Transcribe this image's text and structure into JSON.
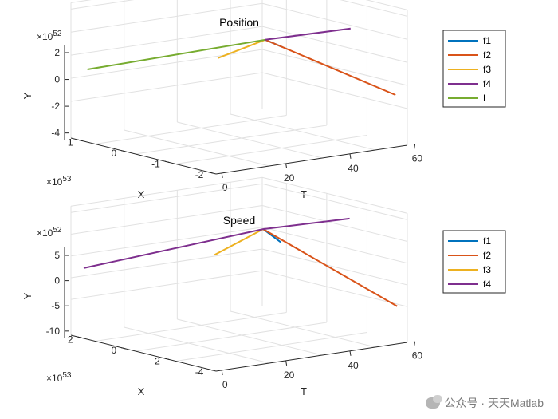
{
  "chart_data": [
    {
      "type": "line",
      "title": "Position",
      "xlabel": "X",
      "ylabel": "T",
      "zlabel": "Y",
      "x_exponent": "×10",
      "x_exponent_power": "53",
      "z_exponent": "×10",
      "z_exponent_power": "52",
      "xticks": [
        "1",
        "0",
        "-1",
        "-2"
      ],
      "yticks": [
        "0",
        "20",
        "40",
        "60"
      ],
      "zticks": [
        "2",
        "0",
        "-2",
        "-4"
      ],
      "legend_position": "top-right",
      "series": [
        {
          "name": "f1",
          "color": "#0072BD",
          "points": [
            [
              -0.09,
              40,
              0.4
            ],
            [
              -0.1,
              45,
              -0.4
            ]
          ]
        },
        {
          "name": "f2",
          "color": "#D95319",
          "points": [
            [
              -0.09,
              40,
              0.4
            ],
            [
              -1.9,
              58,
              -3.5
            ]
          ]
        },
        {
          "name": "f3",
          "color": "#EDB120",
          "points": [
            [
              -0.09,
              40,
              0.4
            ],
            [
              0.95,
              38,
              -1.9
            ]
          ]
        },
        {
          "name": "f4",
          "color": "#7E2F8E",
          "points": [
            [
              -0.09,
              40,
              0.4
            ],
            [
              -0.92,
              56,
              1.35
            ]
          ]
        },
        {
          "name": "L",
          "color": "#77AC30",
          "points": [
            [
              1.25,
              2,
              -1.6
            ],
            [
              -0.09,
              40,
              0.4
            ]
          ]
        }
      ]
    },
    {
      "type": "line",
      "title": "Speed",
      "xlabel": "X",
      "ylabel": "T",
      "zlabel": "Y",
      "x_exponent": "×10",
      "x_exponent_power": "53",
      "z_exponent": "×10",
      "z_exponent_power": "52",
      "xticks": [
        "2",
        "0",
        "-2",
        "-4"
      ],
      "yticks": [
        "0",
        "20",
        "40",
        "60"
      ],
      "zticks": [
        "5",
        "0",
        "-5",
        "-10"
      ],
      "legend_position": "top-right",
      "series": [
        {
          "name": "f1",
          "color": "#0072BD",
          "points": [
            [
              -0.15,
              40,
              2.9
            ],
            [
              -0.2,
              45,
              0
            ]
          ]
        },
        {
          "name": "f2",
          "color": "#D95319",
          "points": [
            [
              -0.15,
              40,
              2.9
            ],
            [
              -3.8,
              58,
              -10
            ]
          ]
        },
        {
          "name": "f3",
          "color": "#EDB120",
          "points": [
            [
              -0.15,
              40,
              2.9
            ],
            [
              1.9,
              38,
              -3.8
            ]
          ]
        },
        {
          "name": "f4",
          "color": "#7E2F8E",
          "points": [
            [
              2.5,
              2,
              -3.5
            ],
            [
              -0.15,
              40,
              2.9
            ],
            [
              -1.8,
              56,
              5
            ]
          ]
        }
      ]
    }
  ],
  "watermark": {
    "text": "公众号 · 天天Matlab",
    "icon": "wechat-icon"
  }
}
